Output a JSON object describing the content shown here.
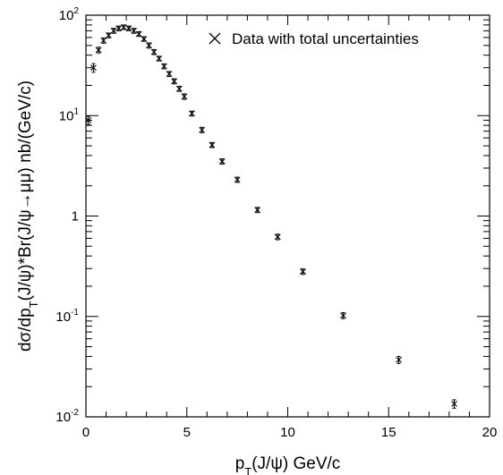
{
  "chart_data": {
    "type": "scatter",
    "xlabel": "p_T(J/ψ) GeV/c",
    "ylabel": "dσ/dp_T(J/ψ)*Br(J/ψ→μμ) nb/(GeV/c)",
    "xlim": [
      0,
      20
    ],
    "ylim": [
      0.01,
      100
    ],
    "yscale": "log",
    "grid": false,
    "legend_position": "top-right",
    "x_ticks": [
      {
        "value": 0,
        "label": "0"
      },
      {
        "value": 5,
        "label": "5"
      },
      {
        "value": 10,
        "label": "10"
      },
      {
        "value": 15,
        "label": "15"
      },
      {
        "value": 20,
        "label": "20"
      }
    ],
    "y_ticks": [
      {
        "value": 0.01,
        "base": "10",
        "exp": "-2"
      },
      {
        "value": 0.1,
        "base": "10",
        "exp": "-1"
      },
      {
        "value": 1,
        "base": "1",
        "exp": ""
      },
      {
        "value": 10,
        "base": "10",
        "exp": "1"
      },
      {
        "value": 100,
        "base": "10",
        "exp": "2"
      }
    ],
    "series": [
      {
        "name": "Data with total uncertainties",
        "marker": "x",
        "points": [
          {
            "x": 0.125,
            "y": 9.0,
            "xerr": 0.125,
            "yerr": 0.8
          },
          {
            "x": 0.375,
            "y": 30.0,
            "xerr": 0.125,
            "yerr": 3.0
          },
          {
            "x": 0.625,
            "y": 45.0,
            "xerr": 0.125,
            "yerr": 3.0
          },
          {
            "x": 0.875,
            "y": 56.0,
            "xerr": 0.125,
            "yerr": 3.5
          },
          {
            "x": 1.125,
            "y": 63.0,
            "xerr": 0.125,
            "yerr": 3.5
          },
          {
            "x": 1.375,
            "y": 70.0,
            "xerr": 0.125,
            "yerr": 4.0
          },
          {
            "x": 1.625,
            "y": 74.0,
            "xerr": 0.125,
            "yerr": 4.0
          },
          {
            "x": 1.875,
            "y": 76.0,
            "xerr": 0.125,
            "yerr": 4.0
          },
          {
            "x": 2.125,
            "y": 74.0,
            "xerr": 0.125,
            "yerr": 4.0
          },
          {
            "x": 2.375,
            "y": 70.0,
            "xerr": 0.125,
            "yerr": 4.0
          },
          {
            "x": 2.625,
            "y": 65.0,
            "xerr": 0.125,
            "yerr": 3.5
          },
          {
            "x": 2.875,
            "y": 58.0,
            "xerr": 0.125,
            "yerr": 3.0
          },
          {
            "x": 3.125,
            "y": 50.0,
            "xerr": 0.125,
            "yerr": 3.0
          },
          {
            "x": 3.375,
            "y": 43.0,
            "xerr": 0.125,
            "yerr": 2.5
          },
          {
            "x": 3.625,
            "y": 37.0,
            "xerr": 0.125,
            "yerr": 2.0
          },
          {
            "x": 3.875,
            "y": 31.0,
            "xerr": 0.125,
            "yerr": 1.8
          },
          {
            "x": 4.125,
            "y": 26.0,
            "xerr": 0.125,
            "yerr": 1.5
          },
          {
            "x": 4.375,
            "y": 22.0,
            "xerr": 0.125,
            "yerr": 1.3
          },
          {
            "x": 4.625,
            "y": 18.5,
            "xerr": 0.125,
            "yerr": 1.1
          },
          {
            "x": 4.875,
            "y": 15.5,
            "xerr": 0.125,
            "yerr": 1.0
          },
          {
            "x": 5.25,
            "y": 10.5,
            "xerr": 0.25,
            "yerr": 0.6
          },
          {
            "x": 5.75,
            "y": 7.2,
            "xerr": 0.25,
            "yerr": 0.45
          },
          {
            "x": 6.25,
            "y": 5.1,
            "xerr": 0.25,
            "yerr": 0.3
          },
          {
            "x": 6.75,
            "y": 3.5,
            "xerr": 0.25,
            "yerr": 0.22
          },
          {
            "x": 7.5,
            "y": 2.3,
            "xerr": 0.5,
            "yerr": 0.14
          },
          {
            "x": 8.5,
            "y": 1.15,
            "xerr": 0.5,
            "yerr": 0.07
          },
          {
            "x": 9.5,
            "y": 0.62,
            "xerr": 0.5,
            "yerr": 0.04
          },
          {
            "x": 10.75,
            "y": 0.28,
            "xerr": 0.75,
            "yerr": 0.018
          },
          {
            "x": 12.75,
            "y": 0.102,
            "xerr": 1.25,
            "yerr": 0.007
          },
          {
            "x": 15.5,
            "y": 0.037,
            "xerr": 1.5,
            "yerr": 0.003
          },
          {
            "x": 18.25,
            "y": 0.0135,
            "xerr": 1.75,
            "yerr": 0.0013
          }
        ]
      }
    ]
  }
}
